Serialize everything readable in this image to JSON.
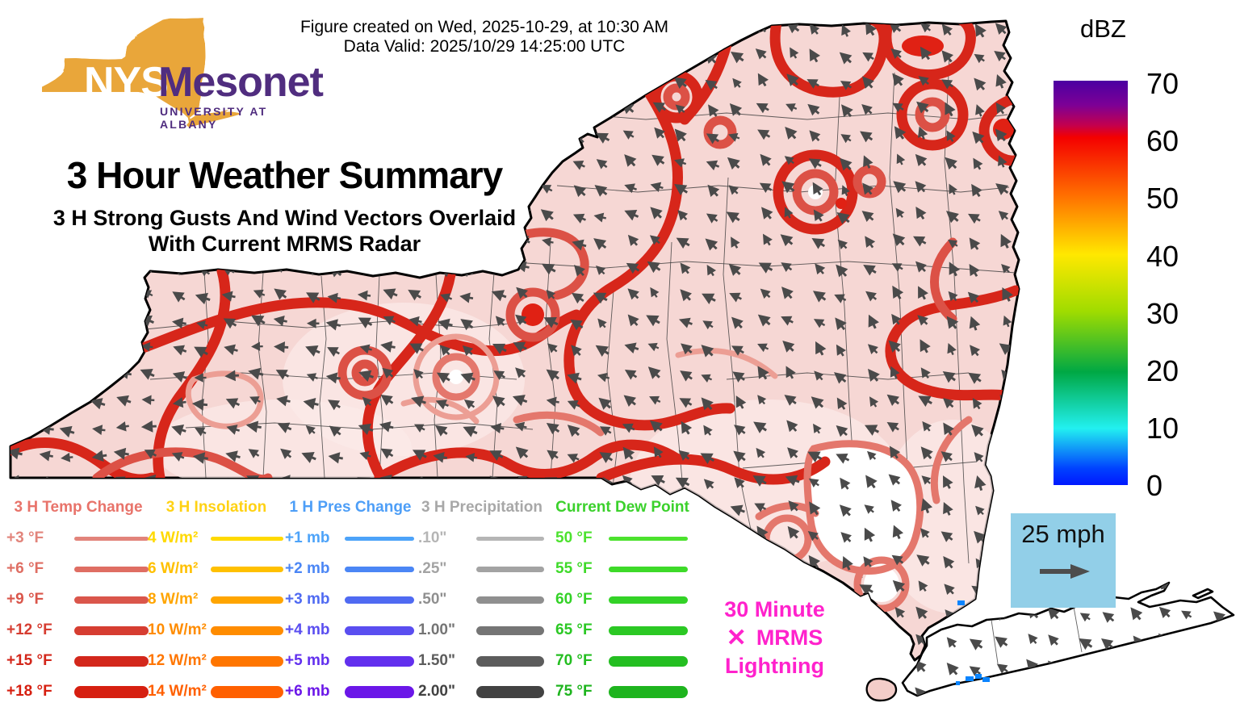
{
  "meta": {
    "figure_created": "Figure created on Wed, 2025-10-29, at 10:30 AM",
    "data_valid": "Data Valid: 2025/10/29 14:25:00 UTC"
  },
  "logo": {
    "acronym": "NYS",
    "name": "Mesonet",
    "subtitle": "UNIVERSITY AT ALBANY",
    "state_color": "#e9a63a",
    "text_color": "#502d7f"
  },
  "title": {
    "main": "3 Hour Weather Summary",
    "subtitle_line1": "3 H Strong Gusts And Wind Vectors Overlaid",
    "subtitle_line2": "With Current MRMS Radar"
  },
  "colorbar": {
    "title": "dBZ",
    "ticks": [
      "70",
      "60",
      "50",
      "40",
      "30",
      "20",
      "10",
      "0"
    ],
    "gradient": [
      {
        "stop": "0%",
        "color": "#4b00a2"
      },
      {
        "stop": "6%",
        "color": "#7c0096"
      },
      {
        "stop": "11%",
        "color": "#c3004e"
      },
      {
        "stop": "14%",
        "color": "#f40000"
      },
      {
        "stop": "28%",
        "color": "#ff6c00"
      },
      {
        "stop": "43%",
        "color": "#ffe800"
      },
      {
        "stop": "57%",
        "color": "#a0dc00"
      },
      {
        "stop": "72%",
        "color": "#00a844"
      },
      {
        "stop": "86%",
        "color": "#22f0f0"
      },
      {
        "stop": "96%",
        "color": "#0040ff"
      },
      {
        "stop": "100%",
        "color": "#0018ff"
      }
    ]
  },
  "wind_reference": {
    "label": "25 mph",
    "box_color": "#92cfe8",
    "arrow_color": "#4d4d4d"
  },
  "lightning_legend": {
    "symbol": "✕",
    "line1": "30 Minute",
    "line2": "MRMS",
    "line3": "Lightning",
    "color": "#ff22cc"
  },
  "legend": {
    "columns": [
      {
        "title": "3 H Temp Change",
        "title_color": "#e8736a",
        "rows": [
          {
            "label": "+3 °F",
            "color": "#e2847b",
            "weight": 5
          },
          {
            "label": "+6 °F",
            "color": "#df6e63",
            "weight": 7
          },
          {
            "label": "+9 °F",
            "color": "#da564b",
            "weight": 9
          },
          {
            "label": "+12 °F",
            "color": "#d63d31",
            "weight": 11
          },
          {
            "label": "+15 °F",
            "color": "#d3271b",
            "weight": 13
          },
          {
            "label": "+18 °F",
            "color": "#d61f10",
            "weight": 15
          }
        ]
      },
      {
        "title": "3 H Insolation",
        "title_color": "#ffd214",
        "rows": [
          {
            "label": "4 W/m²",
            "color": "#ffd900",
            "weight": 5
          },
          {
            "label": "6 W/m²",
            "color": "#ffc000",
            "weight": 7
          },
          {
            "label": "8 W/m²",
            "color": "#ffa500",
            "weight": 9
          },
          {
            "label": "10 W/m²",
            "color": "#ff8c00",
            "weight": 11
          },
          {
            "label": "12 W/m²",
            "color": "#ff7600",
            "weight": 13
          },
          {
            "label": "14 W/m²",
            "color": "#ff6000",
            "weight": 15
          }
        ]
      },
      {
        "title": "1 H Pres Change",
        "title_color": "#4d9ef7",
        "rows": [
          {
            "label": "+1 mb",
            "color": "#4da3f9",
            "weight": 5
          },
          {
            "label": "+2 mb",
            "color": "#4b86f5",
            "weight": 7
          },
          {
            "label": "+3 mb",
            "color": "#4f6af2",
            "weight": 9
          },
          {
            "label": "+4 mb",
            "color": "#5a4ef0",
            "weight": 11
          },
          {
            "label": "+5 mb",
            "color": "#6230ee",
            "weight": 13
          },
          {
            "label": "+6 mb",
            "color": "#6b17e8",
            "weight": 15
          }
        ]
      },
      {
        "title": "3 H Precipitation",
        "title_color": "#a8a8a8",
        "rows": [
          {
            "label": ".10\"",
            "color": "#b5b5b5",
            "weight": 5
          },
          {
            "label": ".25\"",
            "color": "#a3a3a3",
            "weight": 7
          },
          {
            "label": ".50\"",
            "color": "#8f8f8f",
            "weight": 9
          },
          {
            "label": "1.00\"",
            "color": "#757575",
            "weight": 11
          },
          {
            "label": "1.50\"",
            "color": "#5c5c5c",
            "weight": 13
          },
          {
            "label": "2.00\"",
            "color": "#424242",
            "weight": 15
          }
        ]
      },
      {
        "title": "Current Dew Point",
        "title_color": "#3bd12c",
        "rows": [
          {
            "label": "50 °F",
            "color": "#4ce22e",
            "weight": 5
          },
          {
            "label": "55 °F",
            "color": "#3eda29",
            "weight": 7
          },
          {
            "label": "60 °F",
            "color": "#33d227",
            "weight": 9
          },
          {
            "label": "65 °F",
            "color": "#2bc824",
            "weight": 11
          },
          {
            "label": "70 °F",
            "color": "#24be21",
            "weight": 13
          },
          {
            "label": "75 °F",
            "color": "#1eb41e",
            "weight": 15
          }
        ]
      }
    ]
  },
  "map": {
    "region": "New York State",
    "fill_color": "#f6d7d4",
    "border_color": "#000000",
    "contour_colors": [
      "#ec9e94",
      "#e4776c",
      "#dc5146",
      "#d7261a"
    ],
    "arrow_color": "#4a4a4a",
    "arrows": {
      "spacing": 33
    },
    "radar_echo_color": "#0a84ff"
  }
}
